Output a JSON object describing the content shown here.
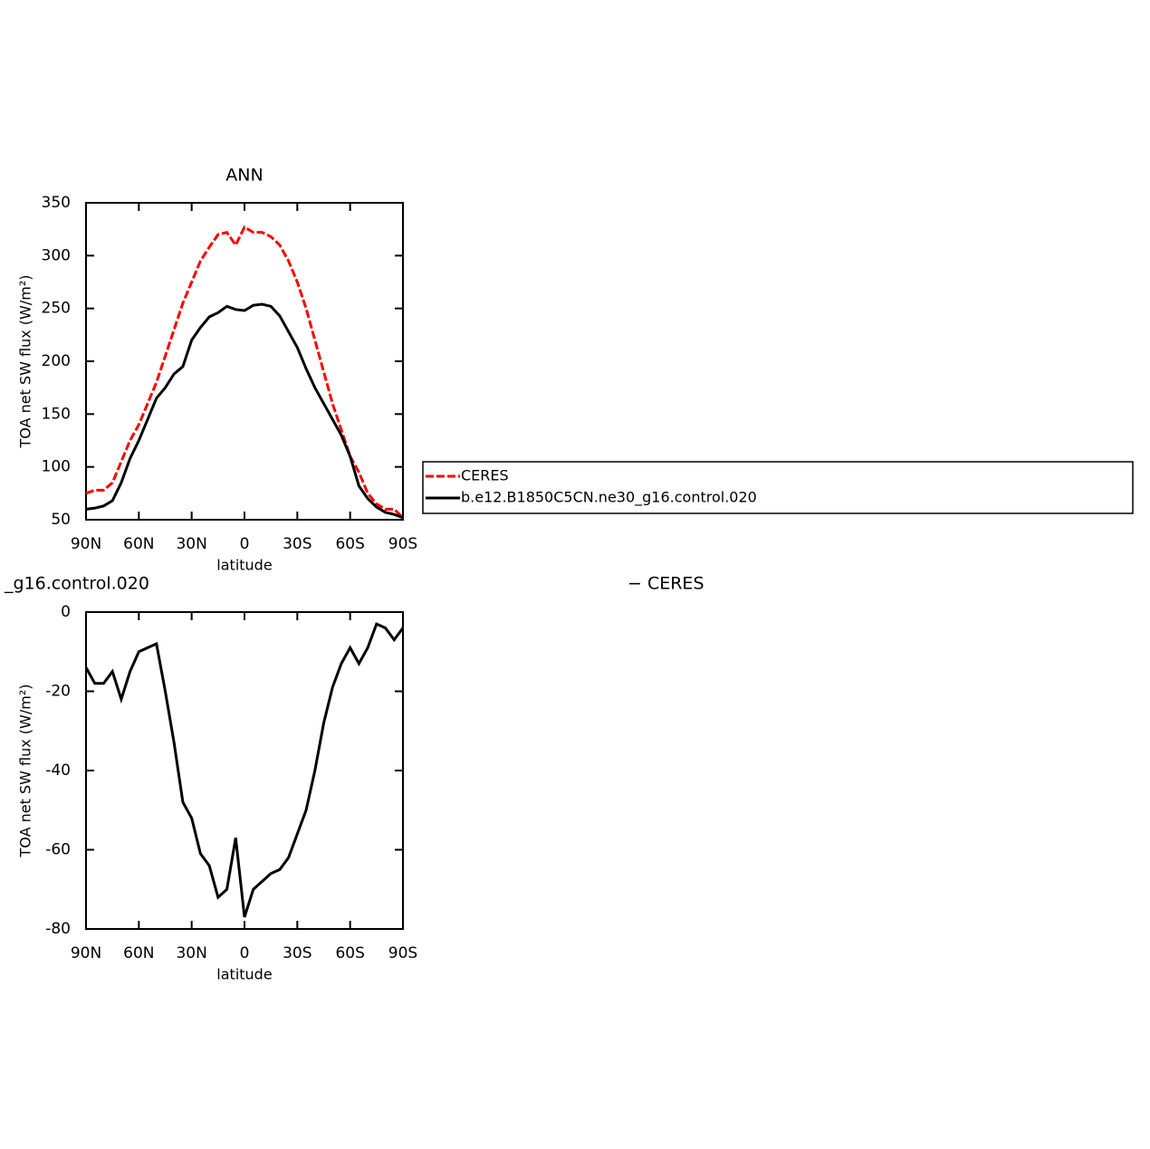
{
  "chart_data": [
    {
      "type": "line",
      "title": "ANN",
      "xlabel": "latitude",
      "ylabel": "TOA net SW flux (W/m²)",
      "x": [
        90,
        85,
        80,
        75,
        70,
        65,
        60,
        55,
        50,
        45,
        40,
        35,
        30,
        25,
        20,
        15,
        10,
        5,
        0,
        -5,
        -10,
        -15,
        -20,
        -25,
        -30,
        -35,
        -40,
        -45,
        -50,
        -55,
        -60,
        -65,
        -70,
        -75,
        -80,
        -85,
        -90
      ],
      "series": [
        {
          "name": "CERES",
          "color": "#ff0000",
          "dash": true,
          "values": [
            75,
            78,
            78,
            85,
            105,
            125,
            140,
            160,
            180,
            205,
            230,
            255,
            275,
            295,
            308,
            320,
            322,
            310,
            327,
            322,
            322,
            318,
            310,
            295,
            275,
            250,
            220,
            190,
            160,
            135,
            110,
            95,
            75,
            65,
            60,
            60,
            52
          ]
        },
        {
          "name": "b.e12.B1850C5CN.ne30_g16.control.020",
          "color": "#000000",
          "dash": false,
          "values": [
            60,
            61,
            63,
            68,
            85,
            108,
            125,
            145,
            165,
            175,
            188,
            195,
            220,
            232,
            242,
            246,
            252,
            249,
            248,
            253,
            254,
            252,
            243,
            228,
            213,
            193,
            175,
            160,
            145,
            130,
            110,
            82,
            70,
            62,
            57,
            55,
            52
          ]
        }
      ],
      "xlim": [
        90,
        -90
      ],
      "xticks": [
        {
          "value": 90,
          "label": "90N"
        },
        {
          "value": 60,
          "label": "60N"
        },
        {
          "value": 30,
          "label": "30N"
        },
        0,
        {
          "value": -30,
          "label": "30S"
        },
        {
          "value": -60,
          "label": "60S"
        },
        {
          "value": -90,
          "label": "90S"
        }
      ],
      "ylim": [
        50,
        350
      ],
      "yticks": [
        50,
        100,
        150,
        200,
        250,
        300,
        350
      ],
      "legend": "right"
    },
    {
      "type": "line",
      "title_left": "_g16.control.020",
      "title_right": "− CERES",
      "xlabel": "latitude",
      "ylabel": "TOA net SW flux (W/m²)",
      "x": [
        90,
        85,
        80,
        75,
        70,
        65,
        60,
        55,
        50,
        45,
        40,
        35,
        30,
        25,
        20,
        15,
        10,
        5,
        0,
        -5,
        -10,
        -15,
        -20,
        -25,
        -30,
        -35,
        -40,
        -45,
        -50,
        -55,
        -60,
        -65,
        -70,
        -75,
        -80,
        -85,
        -90
      ],
      "series": [
        {
          "color": "#000000",
          "dash": false,
          "values": [
            -14,
            -18,
            -18,
            -15,
            -22,
            -15,
            -10,
            -9,
            -8,
            -20,
            -33,
            -48,
            -52,
            -61,
            -64,
            -72,
            -70,
            -57,
            -77,
            -70,
            -68,
            -66,
            -65,
            -62,
            -56,
            -50,
            -40,
            -28,
            -19,
            -13,
            -9,
            -13,
            -9,
            -3,
            -4,
            -7,
            -4
          ]
        }
      ],
      "xlim": [
        90,
        -90
      ],
      "xticks": [
        {
          "value": 90,
          "label": "90N"
        },
        {
          "value": 60,
          "label": "60N"
        },
        {
          "value": 30,
          "label": "30N"
        },
        0,
        {
          "value": -30,
          "label": "30S"
        },
        {
          "value": -60,
          "label": "60S"
        },
        {
          "value": -90,
          "label": "90S"
        }
      ],
      "ylim": [
        -80,
        0
      ],
      "yticks": [
        -80,
        -60,
        -40,
        -20,
        0
      ]
    }
  ]
}
